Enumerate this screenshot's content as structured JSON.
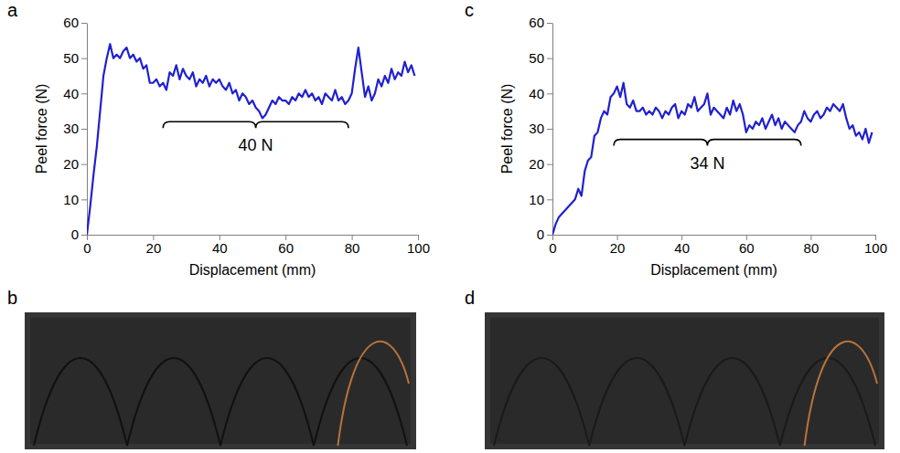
{
  "chart_data": [
    {
      "type": "line",
      "panel": "a",
      "x_label": "Displacement (mm)",
      "y_label": "Peel force (N)",
      "color": "#2020d0",
      "xlim": [
        0,
        100
      ],
      "xticks": [
        0,
        20,
        40,
        60,
        80,
        100
      ],
      "ylim": [
        0,
        60
      ],
      "yticks": [
        0,
        10,
        20,
        30,
        40,
        50,
        60
      ],
      "x": [
        0,
        1,
        2,
        3,
        4,
        5,
        6,
        7,
        8,
        9,
        10,
        11,
        12,
        13,
        14,
        15,
        16,
        17,
        18,
        19,
        20,
        21,
        22,
        23,
        24,
        25,
        26,
        27,
        28,
        29,
        30,
        31,
        32,
        33,
        34,
        35,
        36,
        37,
        38,
        39,
        40,
        41,
        42,
        43,
        44,
        45,
        46,
        47,
        48,
        49,
        50,
        51,
        52,
        53,
        54,
        55,
        56,
        57,
        58,
        59,
        60,
        61,
        62,
        63,
        64,
        65,
        66,
        67,
        68,
        69,
        70,
        71,
        72,
        73,
        74,
        75,
        76,
        77,
        78,
        79,
        80,
        81,
        82,
        83,
        84,
        85,
        86,
        87,
        88,
        89,
        90,
        91,
        92,
        93,
        94,
        95,
        96,
        97,
        98,
        99
      ],
      "values": [
        0,
        8,
        17,
        25,
        35,
        45,
        50,
        54,
        50,
        51,
        50,
        52,
        53,
        50,
        51,
        49,
        50,
        47,
        48,
        43,
        43,
        44,
        42,
        43,
        41,
        46,
        45,
        48,
        44,
        47,
        45,
        44,
        46,
        42,
        44,
        43,
        45,
        42,
        44,
        43,
        44,
        42,
        41,
        43,
        40,
        41,
        38,
        40,
        39,
        37,
        38,
        36,
        35,
        33,
        34,
        36,
        38,
        37,
        39,
        38,
        38,
        37,
        39,
        38,
        40,
        39,
        41,
        39,
        40,
        38,
        39,
        37,
        40,
        39,
        38,
        41,
        38,
        39,
        37,
        38,
        40,
        47,
        53,
        46,
        39,
        42,
        38,
        40,
        44,
        42,
        45,
        43,
        47,
        44,
        46,
        45,
        49,
        46,
        48,
        45
      ],
      "annotations": [
        {
          "text": "40 N",
          "x": [
            23,
            79
          ],
          "y": 32
        }
      ]
    },
    {
      "type": "line",
      "panel": "c",
      "x_label": "Displacement (mm)",
      "y_label": "Peel force (N)",
      "color": "#2020d0",
      "xlim": [
        0,
        100
      ],
      "xticks": [
        0,
        20,
        40,
        60,
        80,
        100
      ],
      "ylim": [
        0,
        60
      ],
      "yticks": [
        0,
        10,
        20,
        30,
        40,
        50,
        60
      ],
      "x": [
        0,
        1,
        2,
        3,
        4,
        5,
        6,
        7,
        8,
        9,
        10,
        11,
        12,
        13,
        14,
        15,
        16,
        17,
        18,
        19,
        20,
        21,
        22,
        23,
        24,
        25,
        26,
        27,
        28,
        29,
        30,
        31,
        32,
        33,
        34,
        35,
        36,
        37,
        38,
        39,
        40,
        41,
        42,
        43,
        44,
        45,
        46,
        47,
        48,
        49,
        50,
        51,
        52,
        53,
        54,
        55,
        56,
        57,
        58,
        59,
        60,
        61,
        62,
        63,
        64,
        65,
        66,
        67,
        68,
        69,
        70,
        71,
        72,
        73,
        74,
        75,
        76,
        77,
        78,
        79,
        80,
        81,
        82,
        83,
        84,
        85,
        86,
        87,
        88,
        89,
        90,
        91,
        92,
        93,
        94,
        95,
        96,
        97,
        98,
        99
      ],
      "values": [
        0,
        3,
        5,
        6,
        7,
        8,
        9,
        10,
        13,
        11,
        18,
        21,
        22,
        28,
        29,
        33,
        35,
        34,
        39,
        40,
        42,
        39,
        43,
        37,
        36,
        38,
        35,
        35,
        36,
        34,
        35,
        34,
        36,
        35,
        33,
        35,
        34,
        36,
        37,
        33,
        35,
        34,
        37,
        36,
        39,
        35,
        36,
        37,
        40,
        34,
        36,
        35,
        34,
        33,
        36,
        34,
        38,
        35,
        37,
        34,
        29,
        31,
        30,
        32,
        31,
        33,
        30,
        32,
        34,
        31,
        33,
        30,
        32,
        31,
        30,
        29,
        31,
        32,
        35,
        33,
        32,
        34,
        35,
        33,
        34,
        36,
        35,
        37,
        36,
        35,
        37,
        33,
        30,
        31,
        28,
        29,
        27,
        30,
        26,
        29
      ],
      "annotations": [
        {
          "text": "34 N",
          "x": [
            19,
            77
          ],
          "y": 27
        }
      ]
    }
  ],
  "photos": [
    {
      "panel": "b"
    },
    {
      "panel": "d"
    }
  ]
}
